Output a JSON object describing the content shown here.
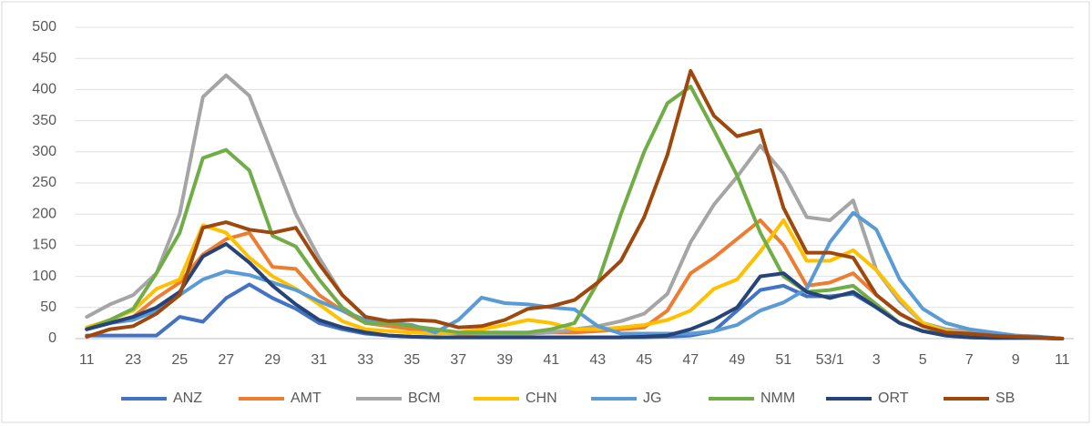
{
  "chart_data": {
    "type": "line",
    "categories": [
      "11",
      null,
      "23",
      null,
      "25",
      null,
      "27",
      null,
      "29",
      null,
      "31",
      null,
      "33",
      null,
      "35",
      null,
      "37",
      null,
      "39",
      null,
      "41",
      null,
      "43",
      null,
      "45",
      null,
      "47",
      null,
      "49",
      null,
      "51",
      null,
      "53/1",
      null,
      "3",
      null,
      "5",
      null,
      "7",
      null,
      "9",
      null,
      "11"
    ],
    "ylim": [
      0,
      500
    ],
    "yticks": [
      0,
      50,
      100,
      150,
      200,
      250,
      300,
      350,
      400,
      450,
      500
    ],
    "grid": true,
    "legend": "bottom",
    "series": [
      {
        "name": "ANZ",
        "color": "#4472c4",
        "values": [
          5,
          5,
          5,
          5,
          35,
          27,
          65,
          87,
          65,
          48,
          25,
          15,
          8,
          5,
          3,
          2,
          2,
          2,
          2,
          2,
          2,
          2,
          2,
          2,
          2,
          3,
          5,
          12,
          45,
          78,
          85,
          68,
          68,
          72,
          50,
          25,
          12,
          5,
          2,
          1,
          1,
          1,
          0
        ]
      },
      {
        "name": "AMT",
        "color": "#ed7d31",
        "values": [
          15,
          25,
          35,
          65,
          90,
          135,
          160,
          170,
          115,
          112,
          70,
          45,
          25,
          20,
          15,
          10,
          8,
          8,
          8,
          8,
          10,
          10,
          12,
          15,
          18,
          45,
          105,
          130,
          160,
          190,
          150,
          85,
          90,
          105,
          70,
          40,
          20,
          12,
          8,
          5,
          3,
          2,
          0
        ]
      },
      {
        "name": "BCM",
        "color": "#a5a5a5",
        "values": [
          35,
          55,
          70,
          105,
          200,
          388,
          423,
          390,
          295,
          200,
          130,
          70,
          35,
          25,
          20,
          15,
          10,
          8,
          8,
          8,
          10,
          15,
          20,
          28,
          40,
          72,
          155,
          215,
          260,
          310,
          265,
          195,
          190,
          222,
          110,
          60,
          25,
          15,
          12,
          8,
          5,
          3,
          0
        ]
      },
      {
        "name": "CHN",
        "color": "#ffc000",
        "values": [
          18,
          30,
          45,
          80,
          95,
          182,
          170,
          130,
          100,
          80,
          55,
          28,
          15,
          12,
          10,
          8,
          10,
          15,
          22,
          30,
          25,
          15,
          15,
          18,
          22,
          30,
          45,
          80,
          95,
          140,
          190,
          125,
          125,
          142,
          110,
          65,
          25,
          12,
          8,
          5,
          3,
          2,
          0
        ]
      },
      {
        "name": "JG",
        "color": "#5b9bd5",
        "values": [
          15,
          25,
          30,
          45,
          70,
          95,
          108,
          102,
          90,
          78,
          60,
          45,
          30,
          25,
          22,
          10,
          30,
          66,
          57,
          55,
          50,
          47,
          20,
          8,
          8,
          8,
          8,
          12,
          22,
          45,
          58,
          80,
          155,
          202,
          175,
          95,
          48,
          25,
          15,
          10,
          5,
          3,
          0
        ]
      },
      {
        "name": "NMM",
        "color": "#70ad47",
        "values": [
          15,
          30,
          48,
          105,
          170,
          290,
          303,
          270,
          165,
          148,
          95,
          50,
          25,
          25,
          20,
          15,
          10,
          10,
          10,
          10,
          15,
          25,
          90,
          200,
          300,
          378,
          405,
          335,
          262,
          170,
          100,
          75,
          78,
          85,
          55,
          25,
          12,
          8,
          5,
          3,
          2,
          1,
          0
        ]
      },
      {
        "name": "ORT",
        "color": "#264478",
        "values": [
          15,
          25,
          35,
          50,
          75,
          132,
          152,
          122,
          85,
          55,
          30,
          18,
          10,
          5,
          3,
          2,
          2,
          2,
          2,
          2,
          2,
          2,
          2,
          2,
          3,
          5,
          15,
          30,
          50,
          100,
          105,
          75,
          65,
          75,
          50,
          25,
          12,
          5,
          2,
          1,
          1,
          1,
          0
        ]
      },
      {
        "name": "SB",
        "color": "#9e480e",
        "values": [
          3,
          15,
          20,
          40,
          70,
          178,
          187,
          175,
          170,
          178,
          120,
          70,
          35,
          28,
          30,
          28,
          18,
          20,
          30,
          48,
          52,
          62,
          90,
          125,
          195,
          295,
          430,
          358,
          325,
          335,
          210,
          138,
          138,
          130,
          70,
          40,
          20,
          10,
          8,
          5,
          3,
          2,
          0
        ]
      }
    ]
  }
}
